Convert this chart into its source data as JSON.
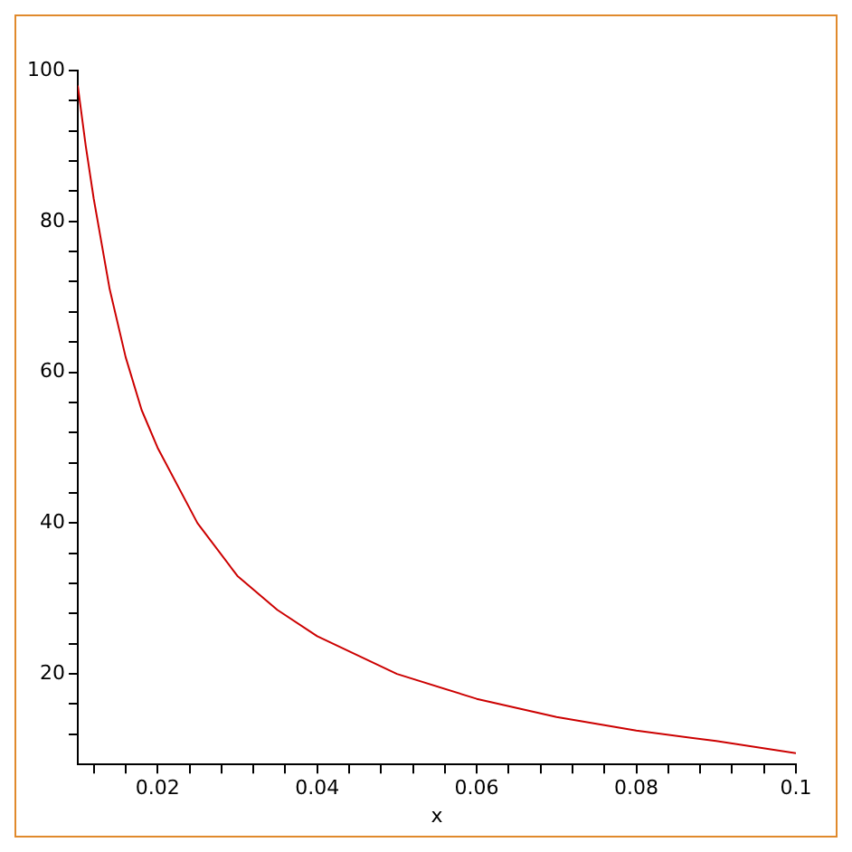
{
  "chart_data": {
    "type": "line",
    "xlabel": "x",
    "x": [
      0.01,
      0.011,
      0.012,
      0.014,
      0.016,
      0.018,
      0.02,
      0.025,
      0.03,
      0.035,
      0.04,
      0.05,
      0.06,
      0.07,
      0.08,
      0.09,
      0.1
    ],
    "series": [
      {
        "color": "#cc0000",
        "values": [
          98,
          90,
          83,
          71,
          62,
          55,
          50,
          40,
          33,
          28.5,
          25,
          20,
          16.7,
          14.3,
          12.5,
          11.1,
          9.5
        ]
      }
    ],
    "xlim": [
      0.01,
      0.1
    ],
    "ylim": [
      8,
      100
    ],
    "xticks": [
      {
        "value": 0.012,
        "label": null
      },
      {
        "value": 0.016,
        "label": null
      },
      0.02,
      {
        "value": 0.024,
        "label": null
      },
      {
        "value": 0.028,
        "label": null
      },
      {
        "value": 0.032,
        "label": null
      },
      {
        "value": 0.036,
        "label": null
      },
      0.04,
      {
        "value": 0.044,
        "label": null
      },
      {
        "value": 0.048,
        "label": null
      },
      {
        "value": 0.052,
        "label": null
      },
      {
        "value": 0.056,
        "label": null
      },
      0.06,
      {
        "value": 0.064,
        "label": null
      },
      {
        "value": 0.068,
        "label": null
      },
      {
        "value": 0.072,
        "label": null
      },
      {
        "value": 0.076,
        "label": null
      },
      0.08,
      {
        "value": 0.084,
        "label": null
      },
      {
        "value": 0.088,
        "label": null
      },
      {
        "value": 0.092,
        "label": null
      },
      {
        "value": 0.096,
        "label": null
      },
      0.1
    ],
    "yticks": [
      {
        "value": 12,
        "label": null
      },
      {
        "value": 16,
        "label": null
      },
      20,
      {
        "value": 24,
        "label": null
      },
      {
        "value": 28,
        "label": null
      },
      {
        "value": 32,
        "label": null
      },
      {
        "value": 36,
        "label": null
      },
      40,
      {
        "value": 44,
        "label": null
      },
      {
        "value": 48,
        "label": null
      },
      {
        "value": 52,
        "label": null
      },
      {
        "value": 56,
        "label": null
      },
      60,
      {
        "value": 64,
        "label": null
      },
      {
        "value": 68,
        "label": null
      },
      {
        "value": 72,
        "label": null
      },
      {
        "value": 76,
        "label": null
      },
      80,
      {
        "value": 84,
        "label": null
      },
      {
        "value": 88,
        "label": null
      },
      {
        "value": 92,
        "label": null
      },
      {
        "value": 96,
        "label": null
      },
      100
    ],
    "grid": false,
    "legend": false,
    "marker": "none",
    "line_style": "solid"
  }
}
